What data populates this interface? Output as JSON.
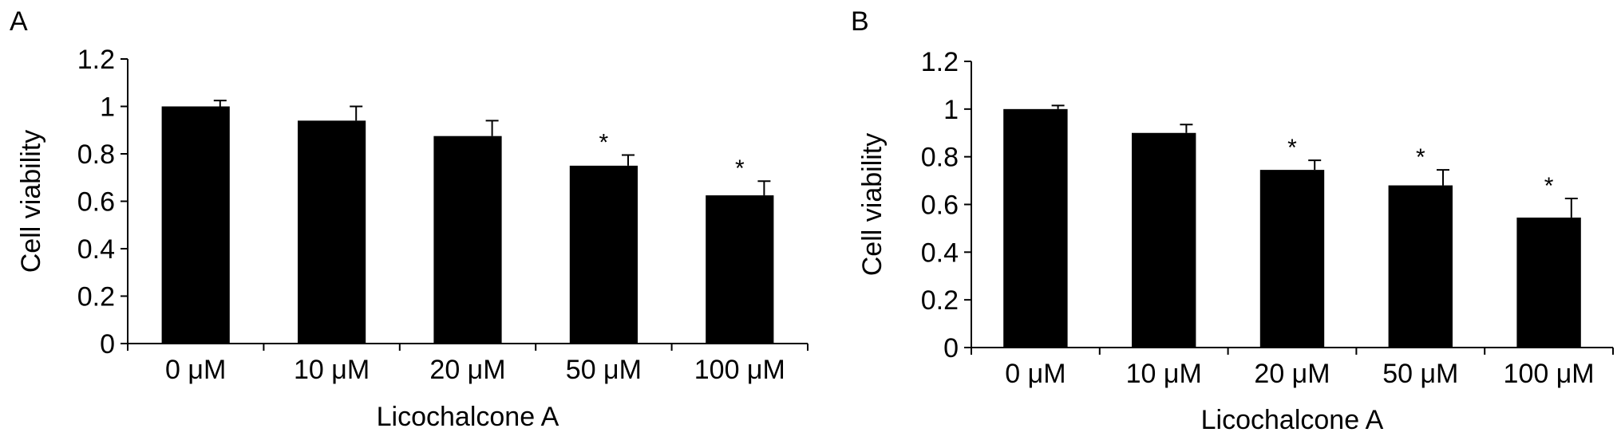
{
  "chart_data": [
    {
      "panel": "A",
      "type": "bar",
      "categories": [
        "0 μM",
        "10 μM",
        "20 μM",
        "50 μM",
        "100 μM"
      ],
      "values": [
        1.0,
        0.94,
        0.875,
        0.75,
        0.625
      ],
      "errors": [
        0.025,
        0.06,
        0.065,
        0.045,
        0.06
      ],
      "significance": [
        "",
        "",
        "",
        "*",
        "*"
      ],
      "xlabel": "Licochalcone A",
      "ylabel": "Cell viability",
      "ylim": [
        0,
        1.2
      ],
      "yticks": [
        "0",
        "0.2",
        "0.4",
        "0.6",
        "0.8",
        "1",
        "1.2"
      ],
      "bar_color": "#000000",
      "grid": false
    },
    {
      "panel": "B",
      "type": "bar",
      "categories": [
        "0 μM",
        "10 μM",
        "20 μM",
        "50 μM",
        "100 μM"
      ],
      "values": [
        1.0,
        0.9,
        0.745,
        0.68,
        0.545
      ],
      "errors": [
        0.015,
        0.035,
        0.04,
        0.065,
        0.08
      ],
      "significance": [
        "",
        "",
        "*",
        "*",
        "*"
      ],
      "xlabel": "Licochalcone A",
      "ylabel": "Cell viability",
      "ylim": [
        0,
        1.2
      ],
      "yticks": [
        "0",
        "0.2",
        "0.4",
        "0.6",
        "0.8",
        "1",
        "1.2"
      ],
      "bar_color": "#000000",
      "grid": false
    }
  ]
}
